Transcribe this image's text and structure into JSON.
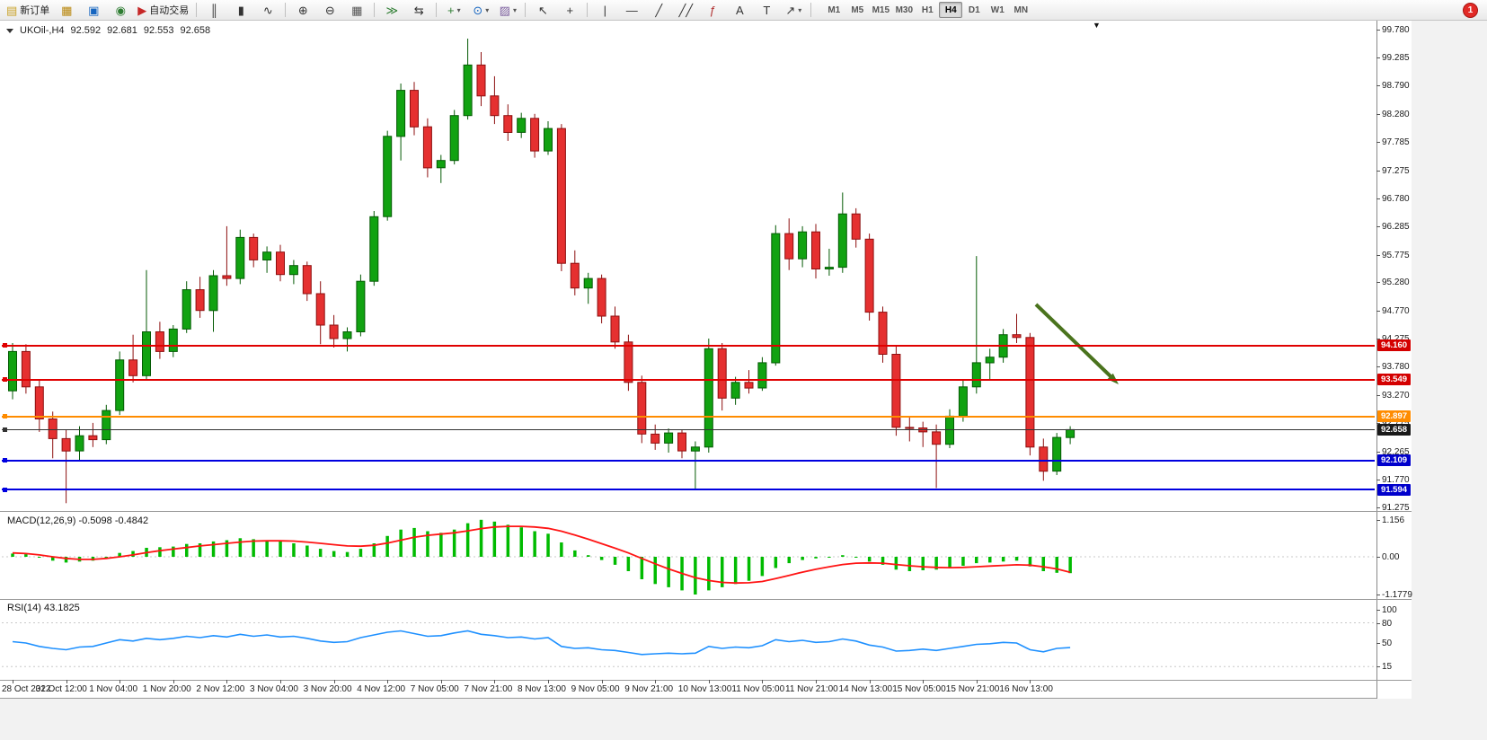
{
  "window": {
    "badge_count": "1"
  },
  "icons": {
    "dropdown_arrow": "▼"
  },
  "toolbar": {
    "buttons": [
      {
        "name": "new-order-button",
        "glyph": "▤",
        "color": "#c9a227",
        "label": "新订单"
      },
      {
        "name": "new-chart-button",
        "glyph": "▦",
        "color": "#b8860b"
      },
      {
        "name": "market-watch-button",
        "glyph": "▣",
        "color": "#1565c0"
      },
      {
        "name": "navigator-button",
        "glyph": "◉",
        "color": "#2e7d32"
      },
      {
        "name": "autotrading-button",
        "glyph": "▶",
        "color": "#c62828",
        "label": "自动交易"
      },
      {
        "sep": true
      },
      {
        "name": "bar-chart-button",
        "glyph": "║",
        "color": "#333333"
      },
      {
        "name": "candlestick-chart-button",
        "glyph": "▮",
        "color": "#333333"
      },
      {
        "name": "line-chart-button",
        "glyph": "∿",
        "color": "#333333"
      },
      {
        "sep": true
      },
      {
        "name": "zoom-in-button",
        "glyph": "⊕",
        "color": "#333333"
      },
      {
        "name": "zoom-out-button",
        "glyph": "⊖",
        "color": "#333333"
      },
      {
        "name": "tile-windows-button",
        "glyph": "▦",
        "color": "#555555"
      },
      {
        "sep": true
      },
      {
        "name": "auto-scroll-button",
        "glyph": "≫",
        "color": "#2e7d32"
      },
      {
        "name": "chart-shift-button",
        "glyph": "⇆",
        "color": "#333333"
      },
      {
        "sep": true
      },
      {
        "name": "indicators-button",
        "glyph": "+",
        "color": "#2e7d32",
        "dropdown": true
      },
      {
        "name": "periods-button",
        "glyph": "⊙",
        "color": "#1565c0",
        "dropdown": true
      },
      {
        "name": "templates-button",
        "glyph": "▨",
        "color": "#7b5d9e",
        "dropdown": true
      },
      {
        "sep": true
      },
      {
        "name": "cursor-button",
        "glyph": "↖",
        "color": "#333333"
      },
      {
        "name": "crosshair-button",
        "glyph": "+",
        "color": "#333333"
      },
      {
        "sep": true
      },
      {
        "name": "vertical-line-button",
        "glyph": "|",
        "color": "#333333"
      },
      {
        "name": "horizontal-line-button",
        "glyph": "—",
        "color": "#333333"
      },
      {
        "name": "trendline-button",
        "glyph": "╱",
        "color": "#333333"
      },
      {
        "name": "channel-button",
        "glyph": "╱╱",
        "color": "#333333"
      },
      {
        "name": "fibonacci-button",
        "glyph": "ƒ",
        "color": "#b03030"
      },
      {
        "name": "text-button",
        "glyph": "A",
        "color": "#333333"
      },
      {
        "name": "label-button",
        "glyph": "T",
        "color": "#333333"
      },
      {
        "name": "shapes-button",
        "glyph": "↗",
        "color": "#333333",
        "dropdown": true
      },
      {
        "sep": true
      }
    ],
    "timeframes": {
      "items": [
        "M1",
        "M5",
        "M15",
        "M30",
        "H1",
        "H4",
        "D1",
        "W1",
        "MN"
      ],
      "active": "H4"
    }
  },
  "chart": {
    "title": {
      "symbol": "UKOil-,H4",
      "open": "92.592",
      "high": "92.681",
      "low": "92.553",
      "close": "92.658"
    },
    "price_axis": [
      "99.780",
      "99.285",
      "98.790",
      "98.280",
      "97.785",
      "97.275",
      "96.780",
      "96.285",
      "95.775",
      "95.280",
      "94.770",
      "94.275",
      "93.780",
      "93.270",
      "92.775",
      "92.265",
      "91.770",
      "91.275"
    ],
    "time_axis": [
      "28 Oct 2022",
      "31 Oct 12:00",
      "1 Nov 04:00",
      "1 Nov 20:00",
      "2 Nov 12:00",
      "3 Nov 04:00",
      "3 Nov 20:00",
      "4 Nov 12:00",
      "7 Nov 05:00",
      "7 Nov 21:00",
      "8 Nov 13:00",
      "9 Nov 05:00",
      "9 Nov 21:00",
      "10 Nov 13:00",
      "11 Nov 05:00",
      "11 Nov 21:00",
      "14 Nov 13:00",
      "15 Nov 05:00",
      "15 Nov 21:00",
      "16 Nov 13:00"
    ],
    "levels": [
      {
        "price": "94.160",
        "value": 94.16,
        "color": "#e00000",
        "tag": "#d40000",
        "width": 2
      },
      {
        "price": "93.549",
        "value": 93.549,
        "color": "#e00000",
        "tag": "#d40000",
        "width": 2
      },
      {
        "price": "92.897",
        "value": 92.897,
        "color": "#ff8c00",
        "tag": "#ff8c00",
        "width": 2
      },
      {
        "price": "92.658",
        "value": 92.658,
        "color": "#333333",
        "tag": "#1a1a1a",
        "width": 1
      },
      {
        "price": "92.109",
        "value": 92.109,
        "color": "#0000e0",
        "tag": "#0000cc",
        "width": 2
      },
      {
        "price": "91.594",
        "value": 91.594,
        "color": "#0000e0",
        "tag": "#0000cc",
        "width": 2
      }
    ]
  },
  "macd": {
    "label": "MACD(12,26,9) -0.5098 -0.4842",
    "scale": [
      "1.156",
      "0.00",
      "-1.1779"
    ]
  },
  "rsi": {
    "label": "RSI(14) 43.1825",
    "scale": [
      "100",
      "80",
      "50",
      "15"
    ]
  },
  "chart_data": {
    "type": "candlestick",
    "symbol": "UKOil-",
    "period": "H4",
    "ylim": [
      91.275,
      99.78
    ],
    "title_ohlc": [
      92.592,
      92.681,
      92.553,
      92.658
    ],
    "level_values": [
      94.16,
      93.549,
      92.897,
      92.658,
      92.109,
      91.594
    ],
    "colors": {
      "up": "#11a211",
      "up_border": "#045a04",
      "down": "#e53030",
      "down_border": "#8d0f0f",
      "macd_hist": "#00bb00",
      "macd_signal": "#ff1414",
      "rsi": "#1e90ff",
      "arrow": "#4a731d"
    },
    "ohlc": [
      [
        93.35,
        94.2,
        93.2,
        94.05
      ],
      [
        94.05,
        94.18,
        93.3,
        93.42
      ],
      [
        93.42,
        93.55,
        92.62,
        92.85
      ],
      [
        92.85,
        92.98,
        92.15,
        92.5
      ],
      [
        92.5,
        92.65,
        91.35,
        92.28
      ],
      [
        92.28,
        92.72,
        92.1,
        92.55
      ],
      [
        92.55,
        92.78,
        92.35,
        92.48
      ],
      [
        92.48,
        93.1,
        92.4,
        93.0
      ],
      [
        93.0,
        94.05,
        92.92,
        93.9
      ],
      [
        93.9,
        94.35,
        93.5,
        93.62
      ],
      [
        93.62,
        95.5,
        93.55,
        94.4
      ],
      [
        94.4,
        94.58,
        93.92,
        94.05
      ],
      [
        94.05,
        94.52,
        93.95,
        94.45
      ],
      [
        94.45,
        95.3,
        94.38,
        95.15
      ],
      [
        95.15,
        95.38,
        94.65,
        94.78
      ],
      [
        94.78,
        95.5,
        94.4,
        95.4
      ],
      [
        95.4,
        96.28,
        95.22,
        95.35
      ],
      [
        95.35,
        96.22,
        95.25,
        96.08
      ],
      [
        96.08,
        96.15,
        95.55,
        95.68
      ],
      [
        95.68,
        95.92,
        95.45,
        95.82
      ],
      [
        95.82,
        95.95,
        95.3,
        95.42
      ],
      [
        95.42,
        95.68,
        95.25,
        95.58
      ],
      [
        95.58,
        95.65,
        94.95,
        95.08
      ],
      [
        95.08,
        95.3,
        94.18,
        94.52
      ],
      [
        94.52,
        94.7,
        94.12,
        94.28
      ],
      [
        94.28,
        94.48,
        94.05,
        94.4
      ],
      [
        94.4,
        95.42,
        94.32,
        95.3
      ],
      [
        95.3,
        96.55,
        95.22,
        96.45
      ],
      [
        96.45,
        97.98,
        96.38,
        97.88
      ],
      [
        97.88,
        98.82,
        97.45,
        98.7
      ],
      [
        98.7,
        98.85,
        97.9,
        98.05
      ],
      [
        98.05,
        98.2,
        97.15,
        97.32
      ],
      [
        97.32,
        97.55,
        97.05,
        97.45
      ],
      [
        97.45,
        98.35,
        97.38,
        98.25
      ],
      [
        98.25,
        99.62,
        98.18,
        99.15
      ],
      [
        99.15,
        99.38,
        98.42,
        98.6
      ],
      [
        98.6,
        98.95,
        98.1,
        98.25
      ],
      [
        98.25,
        98.45,
        97.8,
        97.95
      ],
      [
        97.95,
        98.3,
        97.85,
        98.2
      ],
      [
        98.2,
        98.28,
        97.5,
        97.62
      ],
      [
        97.62,
        98.15,
        97.55,
        98.02
      ],
      [
        98.02,
        98.1,
        95.48,
        95.62
      ],
      [
        95.62,
        95.85,
        95.05,
        95.18
      ],
      [
        95.18,
        95.45,
        94.9,
        95.35
      ],
      [
        95.35,
        95.42,
        94.55,
        94.68
      ],
      [
        94.68,
        94.85,
        94.1,
        94.22
      ],
      [
        94.22,
        94.35,
        93.35,
        93.5
      ],
      [
        93.5,
        93.62,
        92.42,
        92.58
      ],
      [
        92.58,
        92.75,
        92.3,
        92.42
      ],
      [
        92.42,
        92.68,
        92.25,
        92.6
      ],
      [
        92.6,
        92.66,
        92.15,
        92.28
      ],
      [
        92.28,
        92.45,
        91.6,
        92.35
      ],
      [
        92.35,
        94.28,
        92.25,
        94.1
      ],
      [
        94.1,
        94.2,
        93.0,
        93.22
      ],
      [
        93.22,
        93.6,
        93.1,
        93.5
      ],
      [
        93.5,
        93.72,
        93.3,
        93.4
      ],
      [
        93.4,
        93.95,
        93.35,
        93.85
      ],
      [
        93.85,
        96.3,
        93.8,
        96.15
      ],
      [
        96.15,
        96.42,
        95.5,
        95.7
      ],
      [
        95.7,
        96.28,
        95.55,
        96.18
      ],
      [
        96.18,
        96.32,
        95.35,
        95.52
      ],
      [
        95.52,
        95.88,
        95.4,
        95.55
      ],
      [
        95.55,
        96.88,
        95.45,
        96.5
      ],
      [
        96.5,
        96.6,
        95.9,
        96.05
      ],
      [
        96.05,
        96.15,
        94.6,
        94.75
      ],
      [
        94.75,
        94.85,
        93.85,
        94.0
      ],
      [
        94.0,
        94.15,
        92.55,
        92.7
      ],
      [
        92.7,
        92.88,
        92.45,
        92.69
      ],
      [
        92.69,
        92.8,
        92.35,
        92.62
      ],
      [
        92.62,
        92.75,
        91.62,
        92.4
      ],
      [
        92.4,
        93.02,
        92.33,
        92.9
      ],
      [
        92.9,
        93.55,
        92.8,
        93.42
      ],
      [
        93.42,
        95.75,
        93.3,
        93.85
      ],
      [
        93.85,
        94.1,
        93.55,
        93.95
      ],
      [
        93.95,
        94.45,
        93.85,
        94.35
      ],
      [
        94.35,
        94.72,
        94.2,
        94.3
      ],
      [
        94.3,
        94.38,
        92.2,
        92.35
      ],
      [
        92.35,
        92.5,
        91.75,
        91.92
      ],
      [
        91.92,
        92.6,
        91.85,
        92.52
      ],
      [
        92.52,
        92.72,
        92.4,
        92.66
      ]
    ],
    "macd": {
      "params": [
        12,
        26,
        9
      ],
      "last_macd": -0.5098,
      "last_signal": -0.4842,
      "ylim": [
        -1.1779,
        1.156
      ],
      "hist": [
        0.1,
        0.08,
        -0.02,
        -0.12,
        -0.18,
        -0.15,
        -0.12,
        -0.02,
        0.12,
        0.18,
        0.28,
        0.3,
        0.32,
        0.4,
        0.42,
        0.48,
        0.52,
        0.58,
        0.55,
        0.52,
        0.48,
        0.42,
        0.35,
        0.25,
        0.18,
        0.15,
        0.25,
        0.42,
        0.65,
        0.85,
        0.9,
        0.8,
        0.75,
        0.85,
        1.05,
        1.156,
        1.1,
        1.0,
        0.92,
        0.8,
        0.72,
        0.45,
        0.2,
        0.05,
        -0.1,
        -0.25,
        -0.45,
        -0.7,
        -0.85,
        -0.95,
        -1.05,
        -1.1779,
        -1.05,
        -0.95,
        -0.85,
        -0.75,
        -0.6,
        -0.35,
        -0.2,
        -0.1,
        -0.05,
        -0.02,
        0.05,
        -0.02,
        -0.15,
        -0.25,
        -0.4,
        -0.45,
        -0.42,
        -0.4,
        -0.35,
        -0.28,
        -0.2,
        -0.18,
        -0.15,
        -0.12,
        -0.3,
        -0.45,
        -0.5,
        -0.5098
      ],
      "signal": [
        0.12,
        0.1,
        0.06,
        0.0,
        -0.05,
        -0.08,
        -0.08,
        -0.05,
        0.0,
        0.06,
        0.13,
        0.19,
        0.24,
        0.29,
        0.34,
        0.38,
        0.42,
        0.46,
        0.49,
        0.5,
        0.5,
        0.49,
        0.46,
        0.42,
        0.38,
        0.34,
        0.33,
        0.36,
        0.43,
        0.52,
        0.61,
        0.67,
        0.71,
        0.75,
        0.81,
        0.88,
        0.93,
        0.95,
        0.95,
        0.93,
        0.89,
        0.8,
        0.68,
        0.55,
        0.41,
        0.27,
        0.12,
        -0.05,
        -0.22,
        -0.38,
        -0.52,
        -0.65,
        -0.74,
        -0.8,
        -0.82,
        -0.81,
        -0.77,
        -0.68,
        -0.58,
        -0.48,
        -0.39,
        -0.31,
        -0.24,
        -0.2,
        -0.19,
        -0.2,
        -0.24,
        -0.28,
        -0.31,
        -0.33,
        -0.34,
        -0.33,
        -0.31,
        -0.29,
        -0.27,
        -0.25,
        -0.26,
        -0.31,
        -0.38,
        -0.4842
      ]
    },
    "rsi": {
      "params": [
        14
      ],
      "last": 43.1825,
      "levels": [
        80,
        50,
        15
      ],
      "values": [
        52,
        50,
        45,
        42,
        40,
        44,
        45,
        50,
        55,
        53,
        57,
        55,
        57,
        60,
        58,
        61,
        59,
        63,
        60,
        62,
        59,
        60,
        57,
        53,
        51,
        52,
        58,
        62,
        66,
        68,
        64,
        60,
        61,
        65,
        68,
        63,
        61,
        58,
        59,
        56,
        58,
        45,
        42,
        43,
        40,
        39,
        36,
        33,
        34,
        35,
        34,
        35,
        45,
        42,
        44,
        43,
        46,
        55,
        52,
        54,
        51,
        52,
        56,
        53,
        47,
        44,
        38,
        39,
        41,
        39,
        42,
        45,
        48,
        49,
        51,
        50,
        40,
        37,
        42,
        43.18
      ]
    }
  }
}
